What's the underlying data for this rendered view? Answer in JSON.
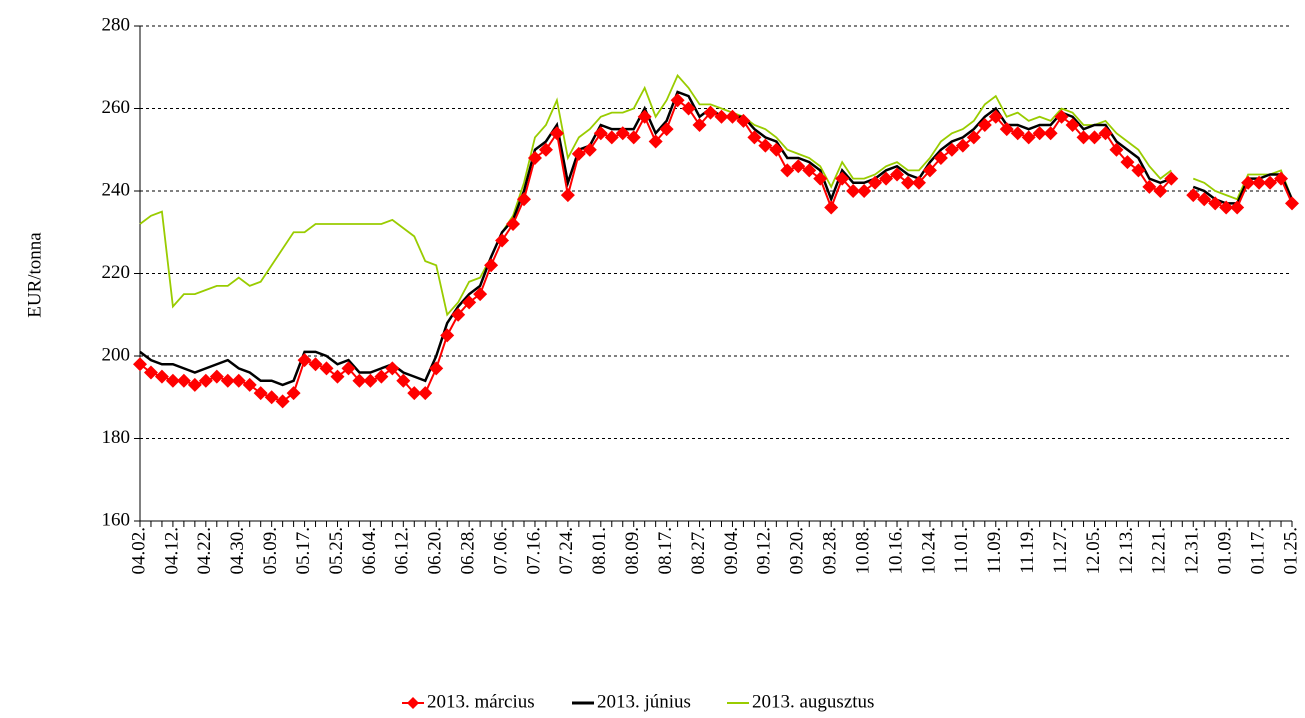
{
  "chart_data": {
    "type": "line",
    "y_label": "EUR/tonna",
    "categories": [
      "04.02.",
      null,
      null,
      "04.12.",
      null,
      null,
      "04.22.",
      null,
      null,
      "04.30.",
      null,
      null,
      "05.09.",
      null,
      null,
      "05.17.",
      null,
      null,
      "05.25.",
      null,
      null,
      "06.04.",
      null,
      null,
      "06.12.",
      null,
      null,
      "06.20.",
      null,
      null,
      "06.28.",
      null,
      null,
      "07.06.",
      null,
      null,
      "07.16.",
      null,
      null,
      "07.24.",
      null,
      null,
      "08.01.",
      null,
      null,
      "08.09.",
      null,
      null,
      "08.17.",
      null,
      null,
      "08.27.",
      null,
      null,
      "09.04.",
      null,
      null,
      "09.12.",
      null,
      null,
      "09.20.",
      null,
      null,
      "09.28.",
      null,
      null,
      "10.08.",
      null,
      null,
      "10.16.",
      null,
      null,
      "10.24.",
      null,
      null,
      "11.01.",
      null,
      null,
      "11.09.",
      null,
      null,
      "11.19.",
      null,
      null,
      "11.27.",
      null,
      null,
      "12.05.",
      null,
      null,
      "12.13.",
      null,
      null,
      "12.21.",
      null,
      null,
      "12.31.",
      null,
      null,
      "01.09.",
      null,
      null,
      "01.17.",
      null,
      null,
      "01.25."
    ],
    "series": [
      {
        "name": "2013. március",
        "color": "#ff0000",
        "marker": "diamond",
        "values": [
          198,
          196,
          195,
          194,
          194,
          193,
          194,
          195,
          194,
          194,
          193,
          191,
          190,
          189,
          191,
          199,
          198,
          197,
          195,
          197,
          194,
          194,
          195,
          197,
          194,
          191,
          191,
          197,
          205,
          210,
          213,
          215,
          222,
          228,
          232,
          238,
          248,
          250,
          254,
          239,
          249,
          250,
          254,
          253,
          254,
          253,
          258,
          252,
          255,
          262,
          260,
          256,
          259,
          258,
          258,
          257,
          253,
          251,
          250,
          245,
          246,
          245,
          243,
          236,
          243,
          240,
          240,
          242,
          243,
          244,
          242,
          242,
          245,
          248,
          250,
          251,
          253,
          256,
          258,
          255,
          254,
          253,
          254,
          254,
          258,
          256,
          253,
          253,
          254,
          250,
          247,
          245,
          241,
          240,
          243,
          null,
          239,
          238,
          237,
          236,
          236,
          242,
          242,
          242,
          243,
          237
        ]
      },
      {
        "name": "2013. június",
        "color": "#000000",
        "values": [
          201,
          199,
          198,
          198,
          197,
          196,
          197,
          198,
          199,
          197,
          196,
          194,
          194,
          193,
          194,
          201,
          201,
          200,
          198,
          199,
          196,
          196,
          197,
          198,
          196,
          195,
          194,
          200,
          208,
          212,
          215,
          217,
          224,
          230,
          233,
          240,
          250,
          252,
          256,
          242,
          250,
          251,
          256,
          255,
          255,
          255,
          260,
          254,
          257,
          264,
          263,
          258,
          260,
          258,
          258,
          258,
          255,
          253,
          252,
          248,
          248,
          247,
          245,
          238,
          245,
          242,
          242,
          243,
          245,
          246,
          244,
          243,
          247,
          250,
          252,
          253,
          255,
          258,
          260,
          256,
          256,
          255,
          256,
          256,
          259,
          258,
          255,
          256,
          256,
          252,
          250,
          248,
          243,
          242,
          243,
          null,
          241,
          240,
          238,
          237,
          237,
          243,
          243,
          244,
          244,
          238
        ]
      },
      {
        "name": "2013. augusztus",
        "color": "#99cc00",
        "values": [
          232,
          234,
          235,
          212,
          215,
          215,
          216,
          217,
          217,
          219,
          217,
          218,
          222,
          226,
          230,
          230,
          232,
          232,
          232,
          232,
          232,
          232,
          232,
          233,
          231,
          229,
          223,
          222,
          210,
          213,
          218,
          219,
          224,
          230,
          234,
          242,
          253,
          256,
          262,
          248,
          253,
          255,
          258,
          259,
          259,
          260,
          265,
          258,
          262,
          268,
          265,
          261,
          261,
          260,
          259,
          258,
          256,
          255,
          253,
          250,
          249,
          248,
          246,
          241,
          247,
          243,
          243,
          244,
          246,
          247,
          245,
          245,
          248,
          252,
          254,
          255,
          257,
          261,
          263,
          258,
          259,
          257,
          258,
          257,
          260,
          259,
          256,
          256,
          257,
          254,
          252,
          250,
          246,
          243,
          245,
          null,
          243,
          242,
          240,
          239,
          238,
          244,
          244,
          244,
          245,
          238
        ]
      }
    ],
    "ylim": [
      160,
      280
    ],
    "yticks": [
      160,
      180,
      200,
      220,
      240,
      260,
      280
    ],
    "grid": true,
    "legend": "bottom"
  }
}
